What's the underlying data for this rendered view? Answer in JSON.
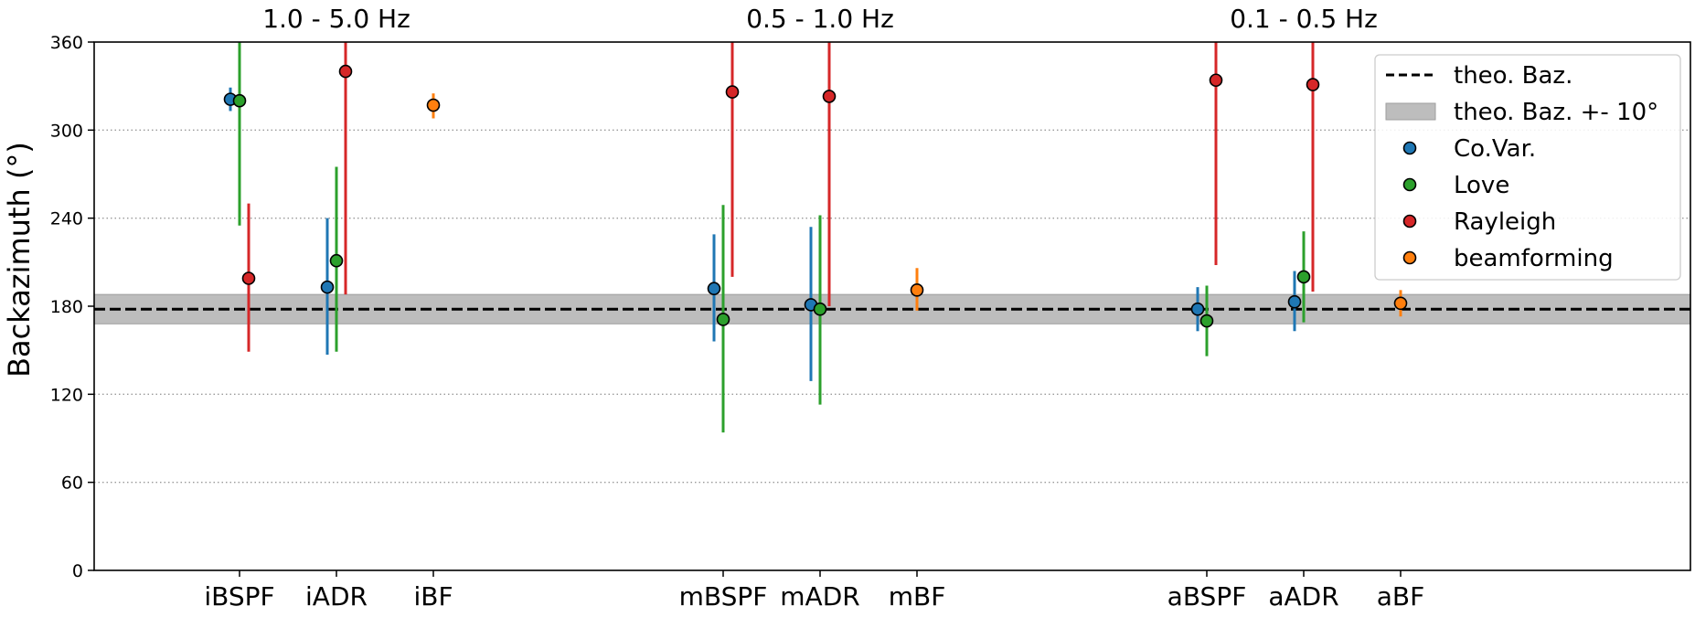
{
  "chart_data": {
    "type": "scatter",
    "ylabel": "Backazimuth (°)",
    "xlabel": "",
    "ylim": [
      0,
      360
    ],
    "yticks": [
      0,
      60,
      120,
      180,
      240,
      300,
      360
    ],
    "grid": "horizontal dotted",
    "legend_position": "top-right",
    "categories": [
      "iBSPF",
      "iADR",
      "iBF",
      "mBSPF",
      "mADR",
      "mBF",
      "aBSPF",
      "aADR",
      "aBF"
    ],
    "groups": [
      {
        "title": "1.0 - 5.0 Hz",
        "categories": [
          "iBSPF",
          "iADR",
          "iBF"
        ]
      },
      {
        "title": "0.5 - 1.0 Hz",
        "categories": [
          "mBSPF",
          "mADR",
          "mBF"
        ]
      },
      {
        "title": "0.1 - 0.5 Hz",
        "categories": [
          "aBSPF",
          "aADR",
          "aBF"
        ]
      }
    ],
    "reference": {
      "name": "theo. Baz.",
      "value": 178,
      "band_name": "theo. Baz. +- 10°",
      "band": [
        168,
        188
      ]
    },
    "series": [
      {
        "name": "Co.Var.",
        "color": "#1f77b4",
        "offset": -1,
        "points": [
          {
            "category": "iBSPF",
            "y": 321,
            "low": 313,
            "high": 329
          },
          {
            "category": "iADR",
            "y": 193,
            "low": 147,
            "high": 240
          },
          {
            "category": "mBSPF",
            "y": 192,
            "low": 156,
            "high": 229
          },
          {
            "category": "mADR",
            "y": 181,
            "low": 129,
            "high": 234
          },
          {
            "category": "aBSPF",
            "y": 178,
            "low": 163,
            "high": 193
          },
          {
            "category": "aADR",
            "y": 183,
            "low": 163,
            "high": 204
          }
        ]
      },
      {
        "name": "Love",
        "color": "#2ca02c",
        "offset": 0,
        "points": [
          {
            "category": "iBSPF",
            "y": 320,
            "low": 235,
            "high": 360
          },
          {
            "category": "iADR",
            "y": 211,
            "low": 149,
            "high": 275
          },
          {
            "category": "mBSPF",
            "y": 171,
            "low": 94,
            "high": 249
          },
          {
            "category": "mADR",
            "y": 178,
            "low": 113,
            "high": 242
          },
          {
            "category": "aBSPF",
            "y": 170,
            "low": 146,
            "high": 194
          },
          {
            "category": "aADR",
            "y": 200,
            "low": 169,
            "high": 231
          }
        ]
      },
      {
        "name": "Rayleigh",
        "color": "#d62728",
        "offset": 1,
        "points": [
          {
            "category": "iBSPF",
            "y": 199,
            "low": 149,
            "high": 250
          },
          {
            "category": "iADR",
            "y": 340,
            "low": 188,
            "high": 360
          },
          {
            "category": "mBSPF",
            "y": 326,
            "low": 200,
            "high": 360
          },
          {
            "category": "mADR",
            "y": 323,
            "low": 180,
            "high": 360
          },
          {
            "category": "aBSPF",
            "y": 334,
            "low": 208,
            "high": 360
          },
          {
            "category": "aADR",
            "y": 331,
            "low": 190,
            "high": 360
          }
        ]
      },
      {
        "name": "beamforming",
        "color": "#ff7f0e",
        "offset": 0,
        "points": [
          {
            "category": "iBF",
            "y": 317,
            "low": 308,
            "high": 325
          },
          {
            "category": "mBF",
            "y": 191,
            "low": 177,
            "high": 206
          },
          {
            "category": "aBF",
            "y": 182,
            "low": 173,
            "high": 191
          }
        ]
      }
    ]
  }
}
